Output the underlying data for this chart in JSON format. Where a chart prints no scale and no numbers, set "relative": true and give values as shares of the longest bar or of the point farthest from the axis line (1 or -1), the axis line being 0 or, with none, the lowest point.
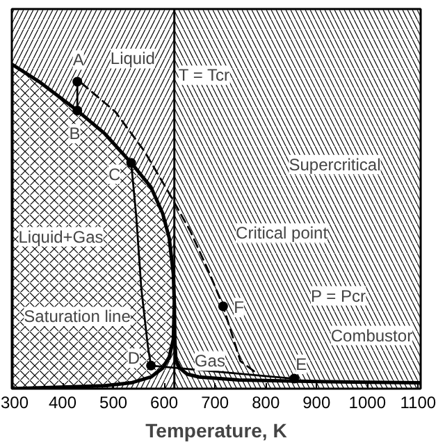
{
  "chart_data": {
    "type": "line",
    "relative": true,
    "xlabel": "Temperature, K",
    "xlim": [
      300,
      1105
    ],
    "xticks": [
      300,
      400,
      500,
      600,
      700,
      800,
      900,
      1000,
      1100
    ],
    "tick_labels": "x",
    "grid": false,
    "bands": [
      {
        "axis": "x",
        "from": 300,
        "to": 620,
        "color": "#000000"
      },
      {
        "axis": "x",
        "from": 620,
        "to": 1105,
        "color": "#000000"
      }
    ],
    "ref_lines": [
      {
        "axis": "x",
        "value": 620,
        "label": "T = Tcr",
        "color": "#000000"
      }
    ],
    "series": [
      {
        "type": "area",
        "color": "#000000",
        "x": [
          300,
          354,
          429,
          483,
          535,
          574,
          597,
          610,
          618,
          620,
          618,
          610,
          597,
          574,
          535,
          483,
          300
        ],
        "values": [
          1.0,
          0.946,
          0.857,
          0.786,
          0.696,
          0.621,
          0.54,
          0.464,
          0.353,
          0.263,
          0.152,
          0.098,
          0.063,
          0.036,
          0.018,
          0.009,
          0
        ]
      },
      {
        "color": "#000000",
        "x": [
          620,
          621,
          623,
          631,
          645,
          669,
          747,
          902,
          1105
        ],
        "values": [
          0.263,
          0.15,
          0.09,
          0.063,
          0.045,
          0.036,
          0.027,
          0.022,
          0.018
        ]
      },
      {
        "color": "#000000",
        "line_style": "solid",
        "x": [
          429,
          429
        ],
        "values": [
          0.946,
          0.857
        ]
      },
      {
        "color": "#000000",
        "line_style": "solid",
        "x": [
          535,
          545,
          555,
          568,
          574
        ],
        "values": [
          0.696,
          0.531,
          0.308,
          0.129,
          0.071
        ]
      },
      {
        "color": "#000000",
        "line_style": "solid",
        "x": [
          574,
          664,
          856
        ],
        "values": [
          0.071,
          0.058,
          0.031
        ]
      },
      {
        "color": "#000000",
        "line_style": "dashed",
        "x": [
          437,
          504,
          561,
          608,
          651,
          690,
          716,
          750,
          781
        ],
        "values": [
          0.942,
          0.853,
          0.732,
          0.607,
          0.487,
          0.353,
          0.254,
          0.085,
          0.049
        ]
      },
      {
        "type": "scatter",
        "color": "#000000",
        "marker": "circle",
        "x": [
          429,
          429,
          535,
          574,
          856,
          716
        ],
        "values": [
          0.946,
          0.857,
          0.696,
          0.071,
          0.031,
          0.254
        ]
      }
    ],
    "annotations": [
      {
        "text": "Liquid",
        "x": 538,
        "y": 1.018
      },
      "Liquid+Gas",
      "Supercritical",
      "Critical point",
      {
        "text": "P = Pcr",
        "x": 943,
        "y": 0.286
      },
      "Combustor",
      "Saturation line",
      {
        "text": "Gas",
        "x": 690,
        "y": 0.085
      },
      {
        "text": "A",
        "x": 431,
        "y": 1.013
      },
      {
        "text": "B",
        "x": 424,
        "y": 0.786
      },
      {
        "text": "C",
        "x": 502,
        "y": 0.661
      },
      {
        "text": "D",
        "x": 540,
        "y": 0.094
      },
      {
        "text": "E",
        "x": 870,
        "y": 0.075
      },
      {
        "text": "F",
        "x": 747,
        "y": 0.25
      }
    ]
  }
}
